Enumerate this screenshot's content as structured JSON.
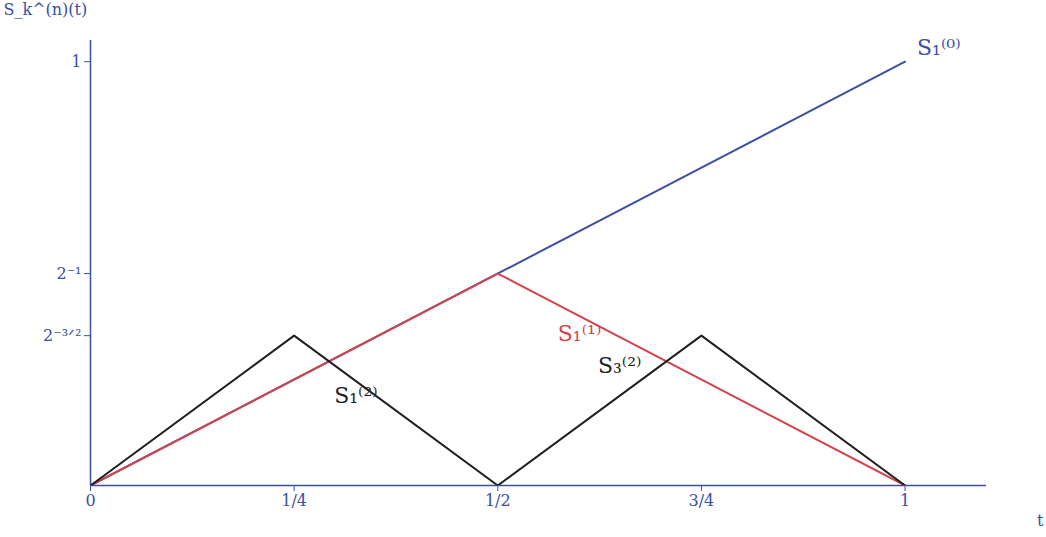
{
  "chart_data": {
    "type": "line",
    "x_label": "t",
    "y_label": "S_k^(n)(t)",
    "xlim": [
      0,
      1.1
    ],
    "ylim": [
      0,
      1.05
    ],
    "xticks": [
      0,
      {
        "value": 0.25,
        "label": "1/4"
      },
      {
        "value": 0.5,
        "label": "1/2"
      },
      {
        "value": 0.75,
        "label": "3/4"
      },
      1
    ],
    "yticks": [
      {
        "value": 0.3536,
        "label": "2⁻³ᐟ²"
      },
      {
        "value": 0.5,
        "label": "2⁻¹"
      },
      1
    ],
    "series": [
      {
        "name": "S₁⁽⁰⁾",
        "color": "#3b4fa3",
        "x": [
          0,
          1
        ],
        "values": [
          0,
          1
        ]
      },
      {
        "name": "S₁⁽¹⁾",
        "color": "#d2434a",
        "x": [
          0,
          0.5,
          1
        ],
        "values": [
          0,
          0.5,
          0
        ]
      },
      {
        "name": "S₁⁽²⁾",
        "color": "#1f1f1f",
        "x": [
          0,
          0.25,
          0.5
        ],
        "values": [
          0,
          0.3536,
          0
        ]
      },
      {
        "name": "S₃⁽²⁾",
        "color": "#1f1f1f",
        "x": [
          0.5,
          0.75,
          1
        ],
        "values": [
          0,
          0.3536,
          0
        ]
      }
    ]
  }
}
